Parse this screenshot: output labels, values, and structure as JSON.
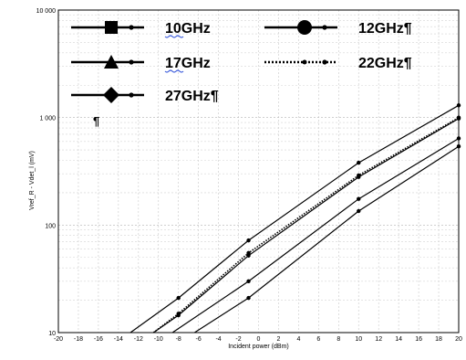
{
  "chart_data": {
    "type": "line",
    "xlabel": "Incident power (dBm)",
    "ylabel": "Vref_R - Vdet_l (mV)",
    "xlim": [
      -20,
      20
    ],
    "ylim": [
      10,
      10000
    ],
    "yscale": "log",
    "grid": true,
    "x_ticks": [
      "-20",
      "-18",
      "-16",
      "-14",
      "-12",
      "-10",
      "-8",
      "-6",
      "-4",
      "-2",
      "0",
      "2",
      "4",
      "6",
      "8",
      "10",
      "12",
      "14",
      "16",
      "18",
      "20"
    ],
    "y_ticks": [
      "10",
      "100",
      "1 000",
      "10 000"
    ],
    "legend_placement": "top-left",
    "legend_note": "¶",
    "series": [
      {
        "name": "10GHz",
        "marker": "square",
        "style": "solid",
        "x": [
          -6.4,
          -1,
          10,
          20
        ],
        "y": [
          10,
          21,
          135,
          540
        ]
      },
      {
        "name": "12GHz¶",
        "marker": "circle",
        "style": "solid",
        "x": [
          -8.6,
          -1,
          10,
          20
        ],
        "y": [
          10,
          30,
          175,
          640
        ]
      },
      {
        "name": "17GHz",
        "marker": "triangle",
        "style": "solid",
        "x": [
          -10.5,
          -8,
          -1,
          10,
          20
        ],
        "y": [
          10,
          14.5,
          52,
          280,
          980
        ]
      },
      {
        "name": "22GHz¶",
        "marker": "dot",
        "style": "dotted",
        "x": [
          -10.5,
          -8,
          -1,
          10,
          20
        ],
        "y": [
          10,
          15,
          55,
          290,
          1000
        ]
      },
      {
        "name": "27GHz¶",
        "marker": "diamond",
        "style": "solid",
        "x": [
          -12.8,
          -8,
          -1,
          10,
          20
        ],
        "y": [
          10,
          21,
          72,
          380,
          1300
        ]
      }
    ]
  }
}
